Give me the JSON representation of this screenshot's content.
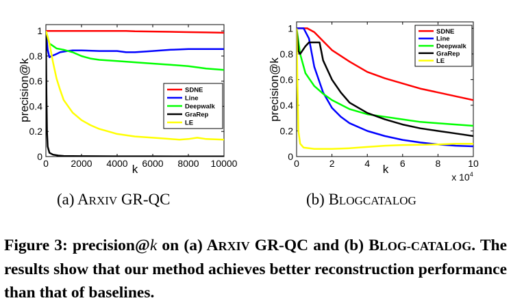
{
  "chart_data": [
    {
      "type": "line",
      "subcaption_prefix": "(a) A",
      "subcaption_sc": "RXIV",
      "subcaption_rest": " GR-QC",
      "xlabel": "k",
      "ylabel": "precision@k",
      "xlim": [
        0,
        10000
      ],
      "ylim": [
        0,
        1.05
      ],
      "xticks": [
        "0",
        "2000",
        "4000",
        "6000",
        "8000",
        "10000"
      ],
      "yticks": [
        "0",
        "0.2",
        "0.4",
        "0.6",
        "0.8",
        "1"
      ],
      "xtick_values": [
        0,
        2000,
        4000,
        6000,
        8000,
        10000
      ],
      "ytick_values": [
        0,
        0.2,
        0.4,
        0.6,
        0.8,
        1
      ],
      "legend_position": "right",
      "series": [
        {
          "name": "SDNE",
          "color": "#ff0000",
          "x": [
            0,
            300,
            1000,
            2000,
            3000,
            4000,
            4500,
            5000,
            6000,
            7000,
            8000,
            9000,
            10000
          ],
          "y": [
            1.0,
            1.0,
            1.0,
            1.0,
            1.0,
            1.0,
            1.0,
            0.997,
            0.995,
            0.993,
            0.99,
            0.988,
            0.985
          ]
        },
        {
          "name": "Line",
          "color": "#0000ff",
          "x": [
            0,
            100,
            200,
            300,
            500,
            800,
            1200,
            1500,
            2000,
            3000,
            4000,
            4500,
            5000,
            6000,
            7000,
            8000,
            9000,
            10000
          ],
          "y": [
            1.0,
            0.85,
            0.79,
            0.8,
            0.81,
            0.83,
            0.84,
            0.845,
            0.845,
            0.84,
            0.84,
            0.83,
            0.83,
            0.84,
            0.85,
            0.855,
            0.855,
            0.855
          ]
        },
        {
          "name": "Deepwalk",
          "color": "#00ff00",
          "x": [
            0,
            100,
            200,
            400,
            600,
            1000,
            1500,
            2000,
            2500,
            3000,
            4000,
            5000,
            6000,
            7000,
            8000,
            9000,
            10000
          ],
          "y": [
            1.0,
            0.95,
            0.9,
            0.88,
            0.86,
            0.85,
            0.83,
            0.8,
            0.78,
            0.77,
            0.76,
            0.75,
            0.74,
            0.73,
            0.72,
            0.7,
            0.69
          ]
        },
        {
          "name": "GraRep",
          "color": "#000000",
          "x": [
            0,
            30,
            60,
            100,
            200,
            400,
            700,
            1000,
            2000,
            4000,
            6000,
            8000,
            10000
          ],
          "y": [
            1.0,
            0.5,
            0.2,
            0.08,
            0.03,
            0.015,
            0.008,
            0.005,
            0.003,
            0.002,
            0.002,
            0.001,
            0.001
          ]
        },
        {
          "name": "LE",
          "color": "#ffff00",
          "x": [
            0,
            200,
            400,
            600,
            800,
            1000,
            1500,
            2000,
            2500,
            3000,
            3500,
            4000,
            5000,
            6000,
            7000,
            7500,
            8000,
            8500,
            9000,
            10000
          ],
          "y": [
            1.0,
            0.9,
            0.75,
            0.62,
            0.53,
            0.45,
            0.35,
            0.29,
            0.25,
            0.22,
            0.2,
            0.18,
            0.16,
            0.15,
            0.14,
            0.135,
            0.14,
            0.15,
            0.14,
            0.135
          ]
        }
      ]
    },
    {
      "type": "line",
      "subcaption_prefix": "(b) B",
      "subcaption_sc": "LOGCATALOG",
      "subcaption_rest": "",
      "xlabel": "k",
      "ylabel": "precision@k",
      "x_multiplier_label": "x 10",
      "x_multiplier_exp": "4",
      "xlim": [
        0,
        10
      ],
      "ylim": [
        0,
        1.05
      ],
      "xticks": [
        "0",
        "2",
        "4",
        "6",
        "8",
        "10"
      ],
      "yticks": [
        "0",
        "0.2",
        "0.4",
        "0.6",
        "0.8",
        "1"
      ],
      "xtick_values": [
        0,
        2,
        4,
        6,
        8,
        10
      ],
      "ytick_values": [
        0,
        0.2,
        0.4,
        0.6,
        0.8,
        1
      ],
      "legend_position": "top-right",
      "series": [
        {
          "name": "SDNE",
          "color": "#ff0000",
          "x": [
            0,
            0.3,
            0.6,
            1,
            1.5,
            2,
            3,
            4,
            5,
            6,
            7,
            8,
            9,
            10
          ],
          "y": [
            1.0,
            1.0,
            1.0,
            0.97,
            0.9,
            0.83,
            0.74,
            0.66,
            0.61,
            0.57,
            0.53,
            0.5,
            0.47,
            0.44
          ]
        },
        {
          "name": "Line",
          "color": "#0000ff",
          "x": [
            0,
            0.4,
            0.7,
            1,
            1.5,
            2,
            2.5,
            3,
            4,
            5,
            6,
            7,
            8,
            9,
            10
          ],
          "y": [
            1.0,
            1.0,
            0.92,
            0.7,
            0.5,
            0.38,
            0.31,
            0.26,
            0.2,
            0.16,
            0.13,
            0.11,
            0.095,
            0.085,
            0.08
          ]
        },
        {
          "name": "Deepwalk",
          "color": "#00ff00",
          "x": [
            0,
            0.2,
            0.5,
            1,
            1.5,
            2,
            3,
            4,
            5,
            6,
            7,
            8,
            9,
            10
          ],
          "y": [
            1.0,
            0.8,
            0.65,
            0.55,
            0.49,
            0.44,
            0.37,
            0.33,
            0.31,
            0.29,
            0.27,
            0.26,
            0.25,
            0.24
          ]
        },
        {
          "name": "GraRep",
          "color": "#000000",
          "x": [
            0,
            0.1,
            0.2,
            0.3,
            0.5,
            0.7,
            1.0,
            1.3,
            1.5,
            2,
            2.5,
            3,
            4,
            5,
            6,
            7,
            8,
            9,
            10
          ],
          "y": [
            1.0,
            0.82,
            0.8,
            0.82,
            0.86,
            0.89,
            0.89,
            0.89,
            0.75,
            0.6,
            0.5,
            0.42,
            0.34,
            0.29,
            0.25,
            0.22,
            0.2,
            0.18,
            0.16
          ]
        },
        {
          "name": "LE",
          "color": "#ffff00",
          "x": [
            0,
            0.05,
            0.1,
            0.2,
            0.4,
            0.7,
            1,
            2,
            3,
            4,
            5,
            6,
            7,
            8,
            9,
            10
          ],
          "y": [
            1.0,
            0.55,
            0.2,
            0.1,
            0.07,
            0.065,
            0.06,
            0.06,
            0.065,
            0.075,
            0.085,
            0.09,
            0.092,
            0.095,
            0.1,
            0.1
          ]
        }
      ]
    }
  ],
  "caption": {
    "part1": "Figure 3: precision@",
    "math_k": "k",
    "part2": " on (a) A",
    "sc1": "RXIV",
    "part3": " GR-QC and (b) B",
    "sc2": "LOG-CATALOG",
    "part4": ". The results show that our method achieves better reconstruction performance than that of baselines."
  }
}
